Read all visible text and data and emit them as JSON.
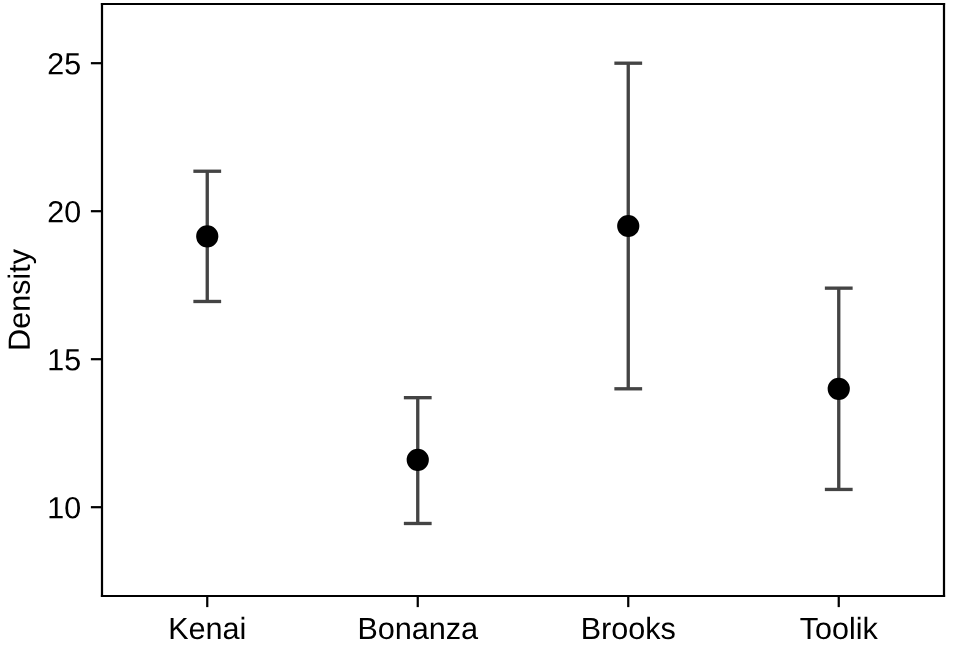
{
  "chart_data": {
    "type": "scatter",
    "ylabel": "Density",
    "categories": [
      "Kenai",
      "Bonanza",
      "Brooks",
      "Toolik"
    ],
    "values": [
      19.15,
      11.6,
      19.5,
      14.0
    ],
    "errors": [
      [
        16.95,
        21.35
      ],
      [
        9.45,
        13.7
      ],
      [
        14.0,
        25.0
      ],
      [
        10.6,
        17.4
      ]
    ],
    "color": "#000000",
    "marker": "circle",
    "ylim": [
      7,
      27
    ],
    "yticks": [
      10,
      15,
      20,
      25
    ],
    "grid": false
  }
}
